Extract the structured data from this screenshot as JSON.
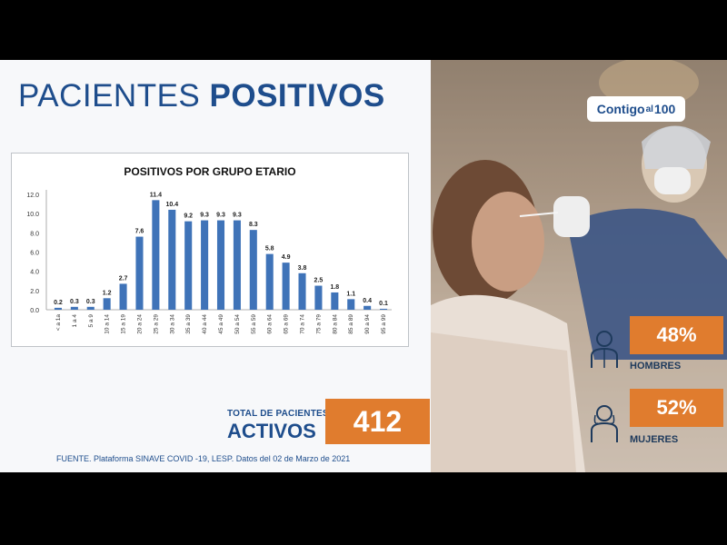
{
  "header": {
    "title_light": "PACIENTES",
    "title_bold": "POSITIVOS"
  },
  "chart_data": {
    "type": "bar",
    "title": "POSITIVOS POR GRUPO ETARIO",
    "categories": [
      "< a 1a",
      "1 a 4",
      "5 a 9",
      "10 a 14",
      "15 a 19",
      "20 a 24",
      "25 a 29",
      "30 a 34",
      "35 a 39",
      "40 a 44",
      "45 a 49",
      "50 a 54",
      "55 a 59",
      "60 a 64",
      "65 a 69",
      "70 a 74",
      "75 a 79",
      "80 a 84",
      "85 a 89",
      "90 a 94",
      "95 a 99"
    ],
    "values": [
      0.2,
      0.3,
      0.3,
      1.2,
      2.7,
      7.6,
      11.4,
      10.4,
      9.2,
      9.3,
      9.3,
      9.3,
      8.3,
      5.8,
      4.9,
      3.8,
      2.5,
      1.8,
      1.1,
      0.4,
      0.1
    ],
    "value_labels": [
      "0.2",
      "0.3",
      "0.3",
      "1.2",
      "2.7",
      "7.6",
      "11.4",
      "10.4",
      "9.2",
      "9.3",
      "9.3",
      "9.3",
      "8.3",
      "5.8",
      "4.9",
      "3.8",
      "2.5",
      "1.8",
      "1.1",
      "0.4",
      "0.1"
    ],
    "yticks": [
      "0.0",
      "2.0",
      "4.0",
      "6.0",
      "8.0",
      "10.0",
      "12.0"
    ],
    "ylim": [
      0,
      12
    ],
    "bar_color": "#3f73b8"
  },
  "total": {
    "label_small": "TOTAL DE PACIENTES",
    "label_big": "ACTIVOS",
    "value": "412"
  },
  "source": "FUENTE. Plataforma SINAVE COVID -19, LESP. Datos del 02 de Marzo de 2021",
  "logo": {
    "part1": "Contigo",
    "part2": "al",
    "part3": "100"
  },
  "stats": {
    "men": {
      "percent": "48%",
      "label": "HOMBRES"
    },
    "women": {
      "percent": "52%",
      "label": "MUJERES"
    }
  },
  "colors": {
    "accent": "#e07c2e",
    "brand": "#1e4d8c"
  }
}
